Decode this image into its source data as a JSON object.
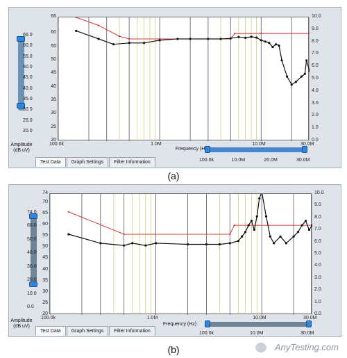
{
  "panels": [
    {
      "id": "a",
      "caption": "(a)",
      "left_scale_label": "Amplitude",
      "left_scale_unit": "(dB uV)",
      "left_ticks": [
        "66.0",
        "60.0",
        "55.0",
        "50.0",
        "45.0",
        "40.0",
        "35.0",
        "30.0",
        "25.0",
        "20.0"
      ],
      "y_ticks": [
        "66",
        "60",
        "55",
        "50",
        "45",
        "40",
        "35",
        "30",
        "25",
        "20"
      ],
      "right_ticks": [
        "10.0",
        "9.0",
        "8.0",
        "7.0",
        "6.0",
        "5.0",
        "4.0",
        "3.0",
        "2.0",
        "1.0",
        "0.0"
      ],
      "x_ticks": [
        "100.0k",
        "1.0M",
        "10.0M",
        "30.0M"
      ],
      "freq_label": "Frequency (Hz)",
      "range_ticks": [
        "100.0k",
        "10.0M",
        "20.0M",
        "30.0M"
      ],
      "tabs": [
        "Test Data",
        "Graph Settings",
        "Filter Information"
      ],
      "colors": {
        "data": "#111111",
        "limit": "#d23a3a",
        "grid_major": "#555555",
        "grid_minor": "#c9c964"
      }
    },
    {
      "id": "b",
      "caption": "(b)",
      "left_scale_label": "Amplitude",
      "left_scale_unit": "(dB uV)",
      "left_ticks": [
        "74.0",
        "60.0",
        "50.0",
        "40.0",
        "30.0",
        "20.0",
        "10.0",
        "0.0"
      ],
      "y_ticks": [
        "74",
        "70",
        "65",
        "60",
        "55",
        "50",
        "45",
        "40",
        "35",
        "30",
        "25",
        "20"
      ],
      "right_ticks": [
        "10.0",
        "9.0",
        "8.0",
        "7.0",
        "6.0",
        "5.0",
        "4.0",
        "3.0",
        "2.0",
        "1.0",
        "0.0"
      ],
      "x_ticks": [
        "100.0k",
        "1.0M",
        "10.0M",
        "30.0M"
      ],
      "freq_label": "Frequency (Hz)",
      "range_ticks": [
        "100.0k",
        "10.0M",
        "30.0M"
      ],
      "tabs": [
        "Test Data",
        "Graph Settings",
        "Filter Information"
      ],
      "colors": {
        "data": "#111111",
        "limit": "#d23a3a",
        "grid_major": "#555555",
        "grid_minor": "#c9c964"
      }
    }
  ],
  "watermark": "AnyTesting.com",
  "chart_data": [
    {
      "type": "line",
      "xscale": "log",
      "xlabel": "Frequency (Hz)",
      "ylabel": "Amplitude (dB uV)",
      "xlim": [
        100000,
        30000000
      ],
      "ylim": [
        20,
        66
      ],
      "series": [
        {
          "x": [
            150000,
            250000,
            400000,
            500000,
            1000000,
            3000000,
            5000000,
            5500000,
            10000000,
            30000000
          ],
          "y": [
            66,
            63,
            59,
            58,
            58,
            58,
            58,
            60,
            60,
            60
          ]
        },
        {
          "x": [
            150000,
            250000,
            350000,
            500000,
            700000,
            1000000,
            1500000,
            2000000,
            3000000,
            4000000,
            5000000,
            6000000,
            7000000,
            8000000,
            9000000,
            10000000,
            11000000,
            12000000,
            13000000,
            14000000,
            15000000,
            16000000,
            18000000,
            20000000,
            22000000,
            25000000,
            27000000,
            28000000,
            30000000
          ],
          "y": [
            61,
            58,
            56,
            56.5,
            56.5,
            57.5,
            58,
            58,
            58,
            58,
            58.2,
            58.7,
            58.4,
            58.8,
            58.5,
            57.5,
            57,
            56.5,
            55,
            56,
            55.5,
            50,
            44,
            41,
            42,
            44,
            45,
            50,
            46
          ]
        }
      ]
    },
    {
      "type": "line",
      "xscale": "log",
      "xlabel": "Frequency (Hz)",
      "ylabel": "Amplitude (dB uV)",
      "xlim": [
        100000,
        30000000
      ],
      "ylim": [
        20,
        74
      ],
      "series": [
        {
          "x": [
            150000,
            500000,
            5000000,
            5500000,
            30000000
          ],
          "y": [
            66,
            56,
            56,
            60,
            60
          ]
        },
        {
          "x": [
            150000,
            300000,
            500000,
            600000,
            800000,
            1000000,
            2000000,
            3000000,
            4000000,
            5000000,
            6000000,
            6500000,
            7000000,
            7500000,
            8000000,
            8500000,
            9000000,
            9500000,
            10000000,
            11000000,
            12000000,
            13000000,
            15000000,
            17000000,
            20000000,
            22000000,
            24000000,
            26000000,
            28000000,
            30000000
          ],
          "y": [
            56,
            52,
            51,
            52,
            51,
            52,
            51.5,
            51.5,
            51.5,
            52,
            53,
            55,
            57,
            60,
            62,
            58,
            64,
            72,
            75,
            64,
            55,
            52,
            55,
            52,
            55,
            57,
            60,
            62,
            58,
            60
          ]
        }
      ]
    }
  ]
}
